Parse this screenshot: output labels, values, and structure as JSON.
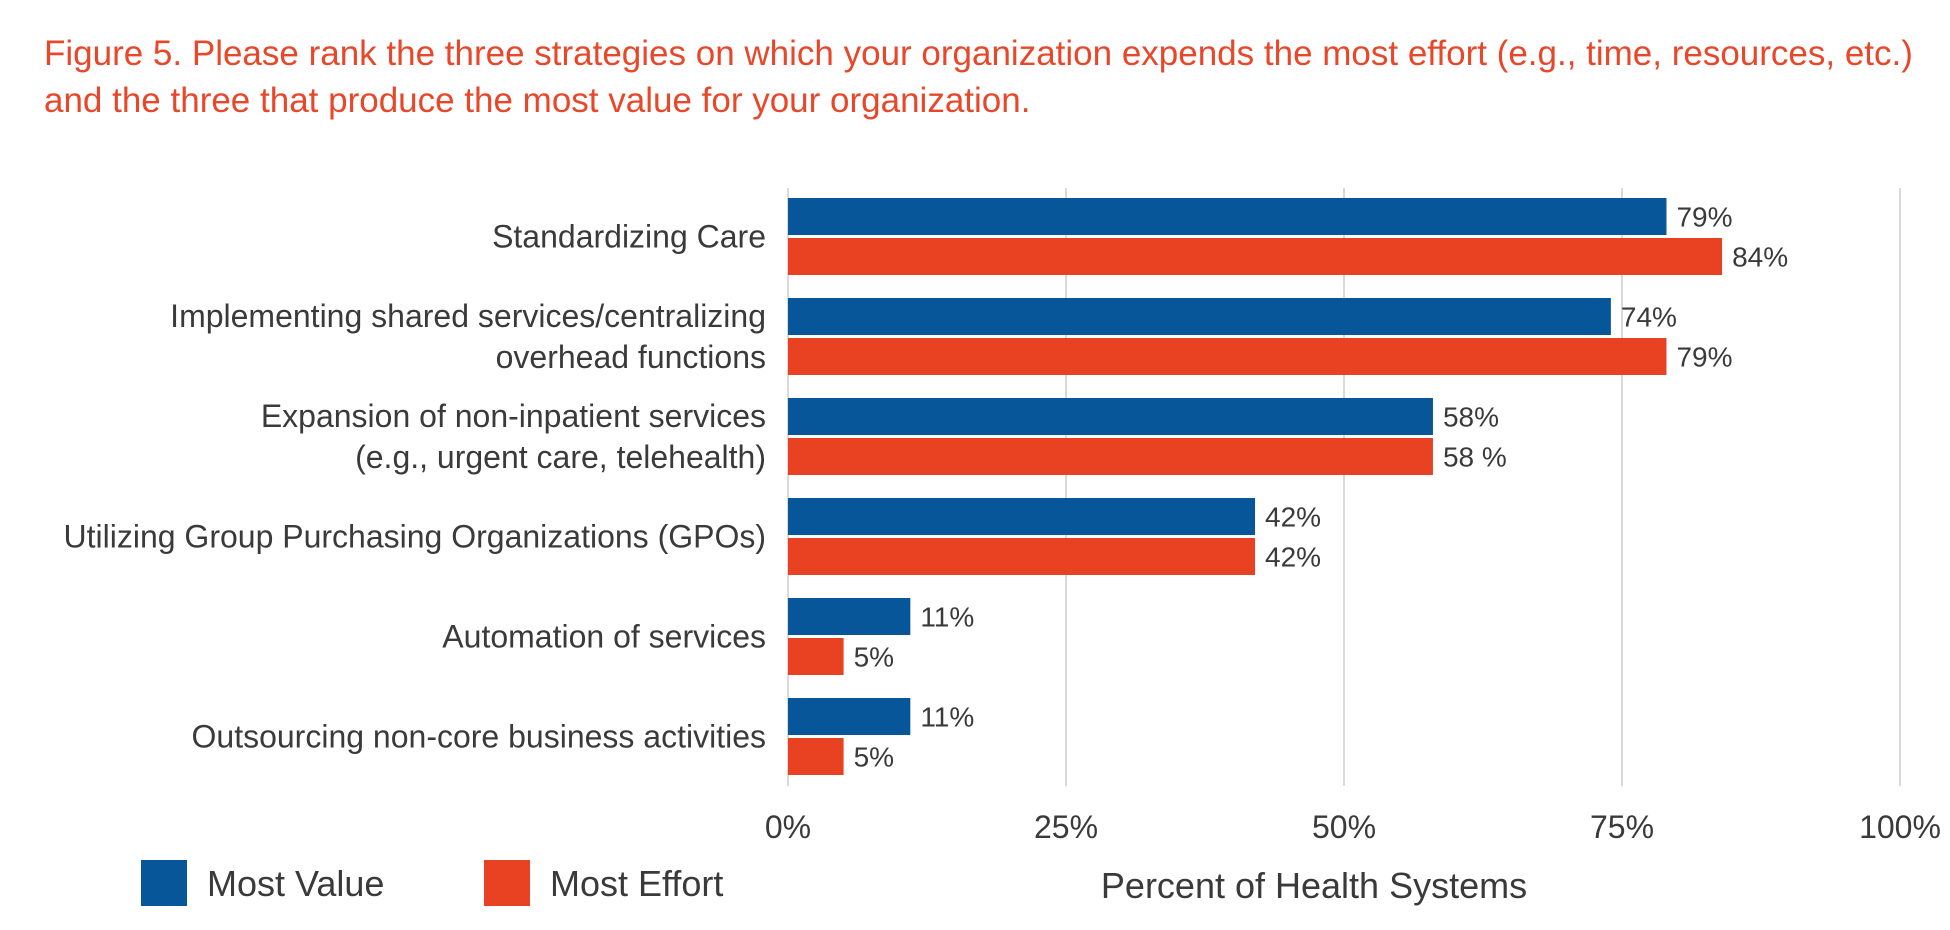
{
  "chart_data": {
    "type": "bar",
    "orientation": "horizontal",
    "title": "Figure 5. Please rank the three strategies on which your organization expends the most effort (e.g., time, resources, etc.) and the three that produce the most value for your organization.",
    "xlabel": "Percent of Health Systems",
    "ylabel": "",
    "xlim": [
      0,
      100
    ],
    "x_ticks": [
      "0%",
      "25%",
      "50%",
      "75%",
      "100%"
    ],
    "grid": true,
    "legend_position": "bottom-left",
    "categories": [
      [
        "Standardizing Care"
      ],
      [
        "Implementing shared services/centralizing",
        "overhead functions"
      ],
      [
        "Expansion of non-inpatient services ",
        "(e.g., urgent care, telehealth)"
      ],
      [
        "Utilizing Group Purchasing Organizations (GPOs)"
      ],
      [
        "Automation of services"
      ],
      [
        "Outsourcing non-core business activities"
      ]
    ],
    "series": [
      {
        "name": "Most Value",
        "color": "#07569a",
        "values": [
          79,
          74,
          58,
          42,
          11,
          11
        ],
        "labels": [
          "79%",
          "74%",
          "58%",
          "42%",
          "11%",
          "11%"
        ]
      },
      {
        "name": "Most Effort",
        "color": "#e84223",
        "values": [
          84,
          79,
          58,
          42,
          5,
          5
        ],
        "labels": [
          "84%",
          "79%",
          "58 %",
          "42%",
          "5%",
          "5%"
        ]
      }
    ]
  }
}
